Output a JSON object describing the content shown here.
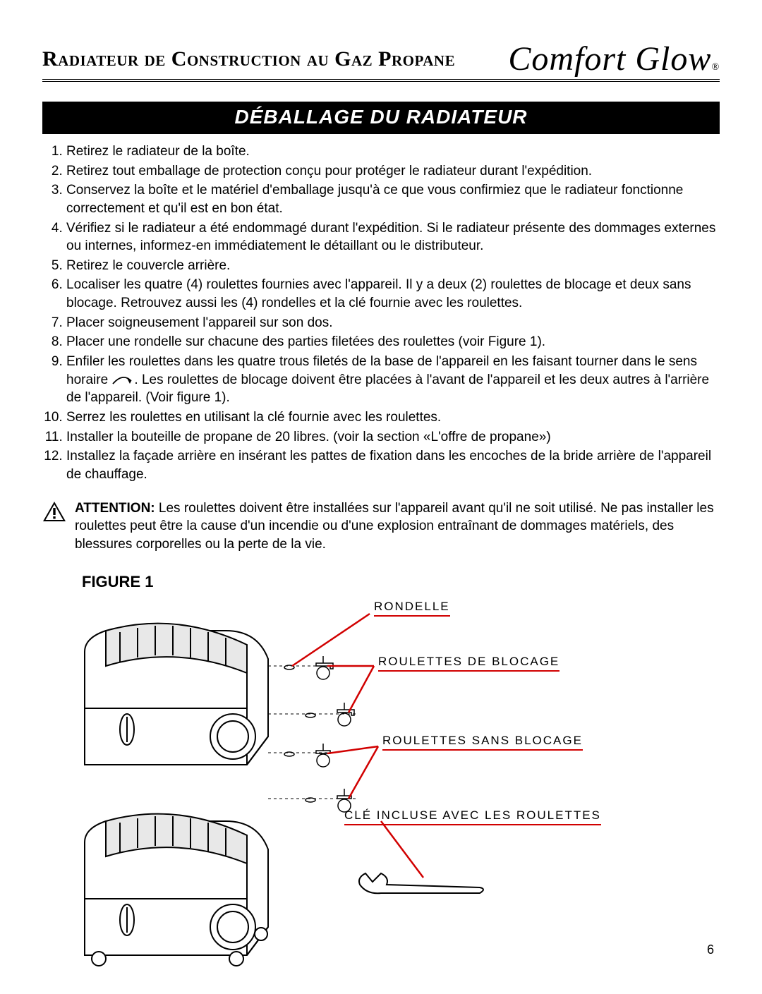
{
  "header": {
    "title": "Radiateur de Construction au Gaz Propane",
    "brand": "Comfort Glow"
  },
  "section_title": "DÉBALLAGE DU RADIATEUR",
  "steps": [
    "Retirez le radiateur de la boîte.",
    "Retirez tout emballage de protection conçu pour protéger le radiateur durant l'expédition.",
    "Conservez la boîte et le matériel d'emballage jusqu'à ce que vous confirmiez que le radiateur fonctionne correctement et qu'il est en bon état.",
    "Vérifiez si le radiateur a été endommagé durant l'expédition. Si le radiateur présente des dommages externes ou internes, informez-en immédiatement le détaillant ou le distributeur.",
    "Retirez le couvercle arrière.",
    "Localiser les quatre (4) roulettes fournies avec l'appareil. Il y a deux (2) roulettes de blocage et deux sans blocage. Retrouvez aussi les (4) rondelles et la clé fournie avec les roulettes.",
    "Placer soigneusement l'appareil sur son dos.",
    "Placer une rondelle sur chacune des parties filetées des roulettes (voir Figure 1).",
    "Enfiler les roulettes dans les quatre trous filetés de la base de l'appareil en les faisant tourner dans le sens horaire {ARROW}. Les roulettes de blocage doivent être placées à l'avant de l'appareil et les deux autres à l'arrière de l'appareil. (Voir figure 1).",
    "Serrez les roulettes en utilisant la clé fournie avec les roulettes.",
    "Installer la bouteille de propane de 20 libres. (voir la section «L'offre de propane»)",
    "Installez la façade arrière en insérant les pattes de fixation dans les encoches de la bride arrière de l'appareil de chauffage."
  ],
  "attention": {
    "label": "ATTENTION:",
    "text": "Les roulettes doivent être installées sur l'appareil avant qu'il ne soit utilisé. Ne pas installer les roulettes peut être la cause d'un incendie ou d'une explosion entraînant de dommages matériels, des blessures corporelles ou la perte de la vie."
  },
  "figure": {
    "title": "FIGURE 1",
    "callouts": {
      "washer": "RONDELLE",
      "locking_casters": "ROULETTES DE BLOCAGE",
      "nonlocking_casters": "ROULETTES SANS BLOCAGE",
      "wrench": "CLÉ INCLUSE AVEC LES ROULETTES"
    },
    "callout_color": "#d10000",
    "line_color": "#000000"
  },
  "page_number": "6",
  "colors": {
    "accent": "#d10000",
    "text": "#000000",
    "bg": "#ffffff"
  },
  "typography": {
    "body_pt": 14,
    "title_pt": 22,
    "section_pt": 21
  }
}
